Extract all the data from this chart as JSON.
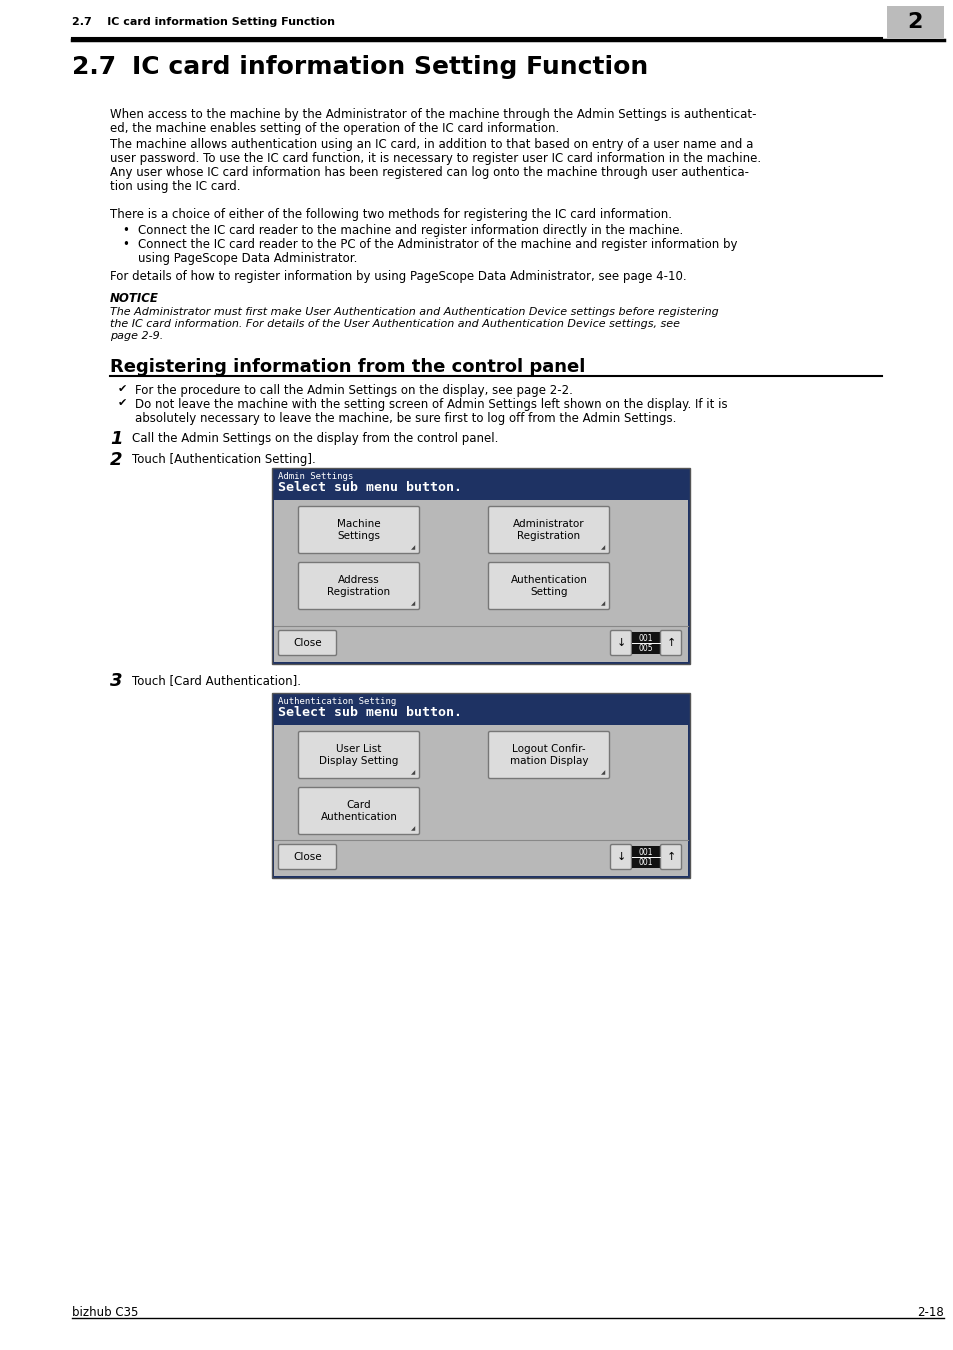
{
  "page_bg": "#ffffff",
  "header_text": "2.7    IC card information Setting Function",
  "header_num": "2",
  "header_num_bg": "#bbbbbb",
  "section_title_num": "2.7",
  "section_title_text": "IC card information Setting Function",
  "body_text_1a": "When access to the machine by the Administrator of the machine through the Admin Settings is authenticat-",
  "body_text_1b": "ed, the machine enables setting of the operation of the IC card information.",
  "body_text_2a": "The machine allows authentication using an IC card, in addition to that based on entry of a user name and a",
  "body_text_2b": "user password. To use the IC card function, it is necessary to register user IC card information in the machine.",
  "body_text_2c": "Any user whose IC card information has been registered can log onto the machine through user authentica-",
  "body_text_2d": "tion using the IC card.",
  "body_text_3": "There is a choice of either of the following two methods for registering the IC card information.",
  "bullet_1": "Connect the IC card reader to the machine and register information directly in the machine.",
  "bullet_2a": "Connect the IC card reader to the PC of the Administrator of the machine and register information by",
  "bullet_2b": "using PageScope Data Administrator.",
  "body_text_4": "For details of how to register information by using PageScope Data Administrator, see page 4-10.",
  "notice_title": "NOTICE",
  "notice_body_1": "The Administrator must first make User Authentication and Authentication Device settings before registering",
  "notice_body_2": "the IC card information. For details of the User Authentication and Authentication Device settings, see",
  "notice_body_3": "page 2-9.",
  "sub_section_title": "Registering information from the control panel",
  "checkmark_1": "For the procedure to call the Admin Settings on the display, see page 2-2.",
  "checkmark_2a": "Do not leave the machine with the setting screen of Admin Settings left shown on the display. If it is",
  "checkmark_2b": "absolutely necessary to leave the machine, be sure first to log off from the Admin Settings.",
  "step1_num": "1",
  "step1_text": "Call the Admin Settings on the display from the control panel.",
  "step2_num": "2",
  "step2_text": "Touch [Authentication Setting].",
  "step3_num": "3",
  "step3_text": "Touch [Card Authentication].",
  "screen1_header_small": "Admin Settings",
  "screen1_header_large": "Select sub menu button.",
  "screen1_btn1": "Machine\nSettings",
  "screen1_btn2": "Administrator\nRegistration",
  "screen1_btn3": "Address\nRegistration",
  "screen1_btn4": "Authentication\nSetting",
  "screen1_close": "Close",
  "screen2_header_small": "Authentication Setting",
  "screen2_header_large": "Select sub menu button.",
  "screen2_btn1": "User List\nDisplay Setting",
  "screen2_btn2": "Logout Confir-\nmation Display",
  "screen2_btn3": "Card\nAuthentication",
  "screen2_close": "Close",
  "footer_left": "bizhub C35",
  "footer_right": "2-18",
  "dark_blue": "#1e3263",
  "screen_gray_bg": "#b8b8b8",
  "screen_inner_bg": "#d0d0d0"
}
